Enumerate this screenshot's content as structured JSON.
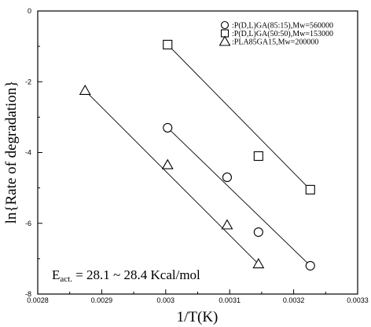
{
  "chart_data": {
    "type": "scatter",
    "title": "",
    "xlabel": "1/T(K)",
    "ylabel": "ln{Rate of degradation}",
    "xlim": [
      0.0028,
      0.0033
    ],
    "ylim": [
      -8,
      0
    ],
    "xticks": [
      0.0028,
      0.0029,
      0.003,
      0.0031,
      0.0032,
      0.0033
    ],
    "xtick_labels": [
      "0.0028",
      "0.0029",
      "0.003",
      "0.0031",
      "0.0032",
      "0.0033"
    ],
    "yticks": [
      0,
      -2,
      -4,
      -6,
      -8
    ],
    "ytick_labels": [
      "0",
      "-2",
      "-4",
      "-6",
      "-8"
    ],
    "grid": false,
    "legend_position": "top-right",
    "annotation": "Eₐₒₜ. = 28.1 ~ 28.4 Kcal/mol",
    "annotation_main": "E",
    "annotation_sub": "act.",
    "annotation_rest": " = 28.1 ~ 28.4 Kcal/mol",
    "series": [
      {
        "name": ":P(D,L)GA(85:15),Mw=560000",
        "marker": "circle",
        "x": [
          0.003003,
          0.003096,
          0.003145,
          0.003226
        ],
        "y": [
          -3.3,
          -4.7,
          -6.25,
          -7.2
        ],
        "fit": [
          [
            0.003003,
            -3.3
          ],
          [
            0.003226,
            -7.2
          ]
        ]
      },
      {
        "name": ":P(D,L)GA(50:50),Mw=153000",
        "marker": "square",
        "x": [
          0.003003,
          0.003145,
          0.003226
        ],
        "y": [
          -0.95,
          -4.1,
          -5.05
        ],
        "fit": [
          [
            0.003003,
            -0.95
          ],
          [
            0.003226,
            -5.05
          ]
        ]
      },
      {
        "name": ":PLA85GA15,Mw=200000",
        "marker": "triangle",
        "x": [
          0.002874,
          0.003003,
          0.003096,
          0.003145
        ],
        "y": [
          -2.25,
          -4.35,
          -6.05,
          -7.15
        ],
        "fit": [
          [
            0.002874,
            -2.25
          ],
          [
            0.003145,
            -7.15
          ]
        ]
      }
    ]
  }
}
